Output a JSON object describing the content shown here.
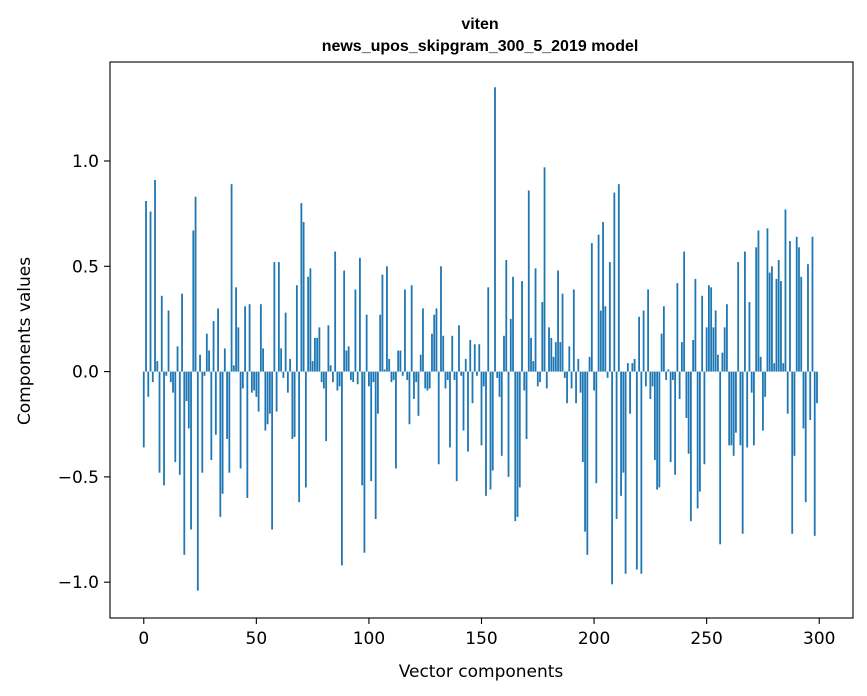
{
  "chart_data": {
    "type": "bar",
    "title": "viten",
    "subtitle": "news_upos_skipgram_300_5_2019 model",
    "xlabel": "Vector components",
    "ylabel": "Components values",
    "xlim": [
      -15,
      315
    ],
    "ylim": [
      -1.17,
      1.47
    ],
    "xticks": [
      0,
      50,
      100,
      150,
      200,
      250,
      300
    ],
    "xtick_labels": [
      "0",
      "50",
      "100",
      "150",
      "200",
      "250",
      "300"
    ],
    "yticks": [
      -1.0,
      -0.5,
      0.0,
      0.5,
      1.0
    ],
    "ytick_labels": [
      "−1.0",
      "−0.5",
      "0.0",
      "0.5",
      "1.0"
    ],
    "grid": false,
    "bar_color": "#1f77b4",
    "values": [
      -0.36,
      0.81,
      -0.12,
      0.76,
      -0.05,
      0.91,
      0.05,
      -0.48,
      0.36,
      -0.54,
      -0.02,
      0.29,
      -0.05,
      -0.1,
      -0.43,
      0.12,
      -0.49,
      0.37,
      -0.87,
      -0.14,
      -0.27,
      -0.75,
      0.67,
      0.83,
      -1.04,
      0.08,
      -0.48,
      -0.02,
      0.18,
      0.1,
      -0.42,
      0.24,
      -0.3,
      0.3,
      -0.69,
      -0.58,
      0.11,
      -0.32,
      -0.48,
      0.89,
      0.03,
      0.4,
      0.21,
      -0.46,
      -0.08,
      0.31,
      -0.6,
      0.32,
      -0.1,
      -0.09,
      -0.12,
      -0.19,
      0.32,
      0.11,
      -0.28,
      -0.25,
      -0.2,
      -0.75,
      0.52,
      -0.19,
      0.52,
      0.11,
      -0.03,
      0.28,
      -0.1,
      0.06,
      -0.32,
      -0.31,
      0.41,
      -0.62,
      0.8,
      0.71,
      -0.55,
      0.45,
      0.49,
      0.05,
      0.16,
      0.16,
      0.21,
      -0.05,
      -0.08,
      -0.33,
      0.22,
      0.03,
      -0.05,
      0.57,
      -0.09,
      -0.07,
      -0.92,
      0.48,
      0.1,
      0.12,
      -0.04,
      -0.05,
      0.39,
      -0.06,
      0.54,
      -0.54,
      -0.86,
      0.27,
      -0.07,
      -0.52,
      -0.05,
      -0.7,
      -0.2,
      0.27,
      0.46,
      0.01,
      0.5,
      0.06,
      -0.05,
      -0.04,
      -0.46,
      0.1,
      0.1,
      -0.02,
      0.39,
      -0.04,
      -0.25,
      0.41,
      -0.13,
      -0.05,
      -0.21,
      0.08,
      0.3,
      -0.08,
      -0.09,
      -0.08,
      0.18,
      0.27,
      0.3,
      -0.44,
      0.5,
      0.17,
      -0.08,
      -0.04,
      -0.36,
      0.17,
      -0.04,
      -0.52,
      0.22,
      -0.02,
      -0.28,
      0.06,
      -0.38,
      0.15,
      -0.15,
      0.13,
      -0.02,
      0.13,
      -0.35,
      -0.07,
      -0.59,
      0.4,
      -0.56,
      -0.47,
      1.35,
      -0.03,
      -0.12,
      -0.4,
      0.17,
      0.53,
      -0.5,
      0.25,
      0.45,
      -0.71,
      -0.69,
      -0.55,
      0.43,
      -0.09,
      -0.32,
      0.86,
      0.16,
      0.05,
      0.49,
      -0.07,
      -0.05,
      0.33,
      0.97,
      -0.08,
      0.21,
      0.16,
      0.07,
      0.14,
      0.48,
      0.14,
      0.37,
      -0.03,
      -0.15,
      0.12,
      -0.08,
      0.39,
      -0.15,
      0.06,
      -0.1,
      -0.43,
      -0.76,
      -0.87,
      0.07,
      0.61,
      -0.09,
      -0.53,
      0.65,
      0.29,
      0.71,
      0.31,
      -0.03,
      0.52,
      -1.01,
      0.85,
      -0.7,
      0.89,
      -0.59,
      -0.48,
      -0.96,
      0.04,
      -0.2,
      0.04,
      0.06,
      -0.94,
      0.26,
      -0.96,
      0.29,
      -0.07,
      0.39,
      -0.13,
      -0.07,
      -0.42,
      -0.56,
      -0.55,
      0.18,
      0.31,
      -0.04,
      0.01,
      -0.43,
      -0.04,
      -0.49,
      0.42,
      -0.13,
      0.14,
      0.57,
      -0.22,
      -0.39,
      -0.71,
      0.15,
      0.44,
      -0.65,
      -0.57,
      0.36,
      -0.44,
      0.21,
      0.41,
      0.4,
      0.21,
      0.29,
      0.08,
      -0.82,
      0.09,
      0.21,
      0.32,
      -0.35,
      -0.35,
      -0.4,
      -0.29,
      0.52,
      -0.35,
      -0.77,
      0.57,
      -0.36,
      0.33,
      -0.1,
      -0.35,
      0.59,
      0.67,
      0.07,
      -0.28,
      -0.12,
      0.68,
      0.47,
      0.5,
      0.04,
      0.44,
      0.53,
      0.43,
      0.04,
      0.77,
      -0.2,
      0.62,
      -0.77,
      -0.4,
      0.64,
      0.59,
      0.45,
      -0.27,
      -0.62,
      0.51,
      -0.23,
      0.64,
      -0.78,
      -0.15
    ]
  }
}
